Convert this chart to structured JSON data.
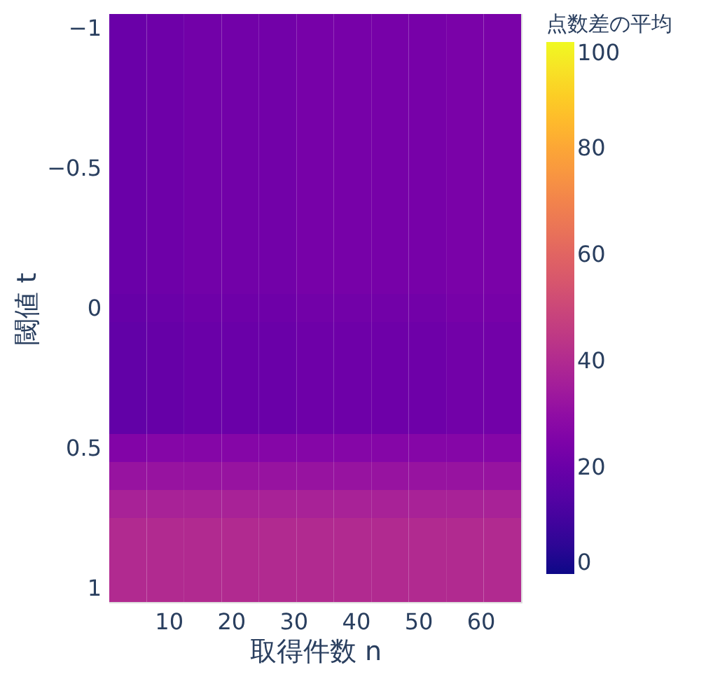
{
  "chart_data": {
    "type": "heatmap",
    "xlabel": "取得件数 n",
    "ylabel": "閾値 t",
    "clabel": "点数差の平均",
    "x": [
      3.5,
      9.5,
      15.5,
      21.5,
      27.5,
      33.5,
      39.5,
      45.5,
      51.5,
      57.5,
      63.5
    ],
    "y": [
      -1,
      -0.9,
      -0.8,
      -0.7,
      -0.6,
      -0.5,
      -0.4,
      -0.3,
      -0.2,
      -0.1,
      0,
      0.1,
      0.2,
      0.3,
      0.4,
      0.5,
      0.6,
      0.7,
      0.8,
      0.9,
      1
    ],
    "xlim": [
      0.5,
      66.5
    ],
    "ylim": [
      1.05,
      -1.05
    ],
    "xticks": [
      10,
      20,
      30,
      40,
      50,
      60
    ],
    "yticks": [
      {
        "value": -1,
        "label": "−1"
      },
      {
        "value": -0.5,
        "label": "−0.5"
      },
      0,
      0.5,
      1
    ],
    "clim": [
      0,
      100
    ],
    "cticks": [
      0,
      20,
      40,
      60,
      80,
      100
    ],
    "cells": [
      [
        20,
        21,
        22,
        22,
        22,
        23,
        23,
        23,
        23,
        24,
        24
      ],
      [
        20,
        21,
        22,
        22,
        22,
        23,
        23,
        23,
        23,
        24,
        24
      ],
      [
        20,
        21,
        22,
        22,
        22,
        23,
        23,
        23,
        23,
        24,
        24
      ],
      [
        20,
        21,
        22,
        22,
        22,
        23,
        23,
        23,
        23,
        24,
        24
      ],
      [
        20,
        21,
        22,
        22,
        22,
        23,
        23,
        23,
        23,
        24,
        24
      ],
      [
        20,
        21,
        22,
        22,
        22,
        23,
        23,
        23,
        23,
        24,
        24
      ],
      [
        20,
        21,
        22,
        22,
        22,
        23,
        23,
        23,
        23,
        24,
        24
      ],
      [
        20,
        21,
        22,
        22,
        22,
        23,
        23,
        23,
        23,
        24,
        24
      ],
      [
        20,
        21,
        22,
        22,
        22,
        23,
        23,
        23,
        23,
        24,
        24
      ],
      [
        20,
        21,
        22,
        22,
        22,
        23,
        23,
        23,
        23,
        24,
        24
      ],
      [
        19,
        20,
        21,
        21,
        21,
        22,
        22,
        22,
        22,
        23,
        23
      ],
      [
        18,
        19,
        20,
        20,
        20,
        21,
        21,
        21,
        21,
        22,
        22
      ],
      [
        18,
        19,
        20,
        20,
        20,
        21,
        21,
        21,
        21,
        22,
        22
      ],
      [
        18,
        19,
        20,
        20,
        20,
        21,
        21,
        21,
        21,
        22,
        22
      ],
      [
        18,
        19,
        20,
        20,
        20,
        21,
        21,
        21,
        21,
        22,
        22
      ],
      [
        26,
        27,
        27,
        27,
        27,
        27,
        27,
        27,
        27,
        27,
        27
      ],
      [
        32,
        32,
        32,
        32,
        32,
        32,
        32,
        32,
        32,
        32,
        32
      ],
      [
        37,
        37,
        37,
        37,
        37,
        37,
        37,
        37,
        37,
        37,
        37
      ],
      [
        40,
        40,
        40,
        40,
        40,
        40,
        40,
        40,
        40,
        40,
        40
      ],
      [
        40,
        40,
        40,
        40,
        40,
        40,
        40,
        40,
        40,
        40,
        40
      ],
      [
        40,
        40,
        40,
        40,
        40,
        40,
        40,
        40,
        40,
        40,
        40
      ]
    ]
  }
}
